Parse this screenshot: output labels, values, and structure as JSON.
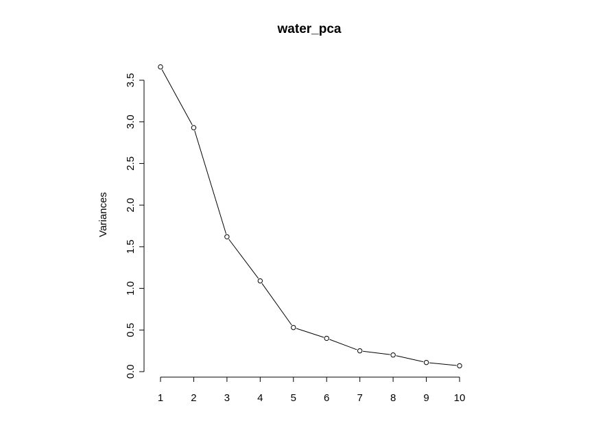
{
  "chart_data": {
    "type": "line",
    "title": "water_pca",
    "xlabel": "",
    "ylabel": "Variances",
    "x": [
      1,
      2,
      3,
      4,
      5,
      6,
      7,
      8,
      9,
      10
    ],
    "series": [
      {
        "values": [
          3.66,
          2.93,
          1.62,
          1.09,
          0.53,
          0.4,
          0.25,
          0.2,
          0.11,
          0.07
        ]
      }
    ],
    "x_ticks": [
      "1",
      "2",
      "3",
      "4",
      "5",
      "6",
      "7",
      "8",
      "9",
      "10"
    ],
    "y_ticks": [
      "0.0",
      "0.5",
      "1.0",
      "1.5",
      "2.0",
      "2.5",
      "3.0",
      "3.5"
    ],
    "xlim": [
      1,
      10
    ],
    "ylim": [
      0,
      3.5
    ],
    "grid": false,
    "marker": "open-circle",
    "line_color": "#000000"
  }
}
